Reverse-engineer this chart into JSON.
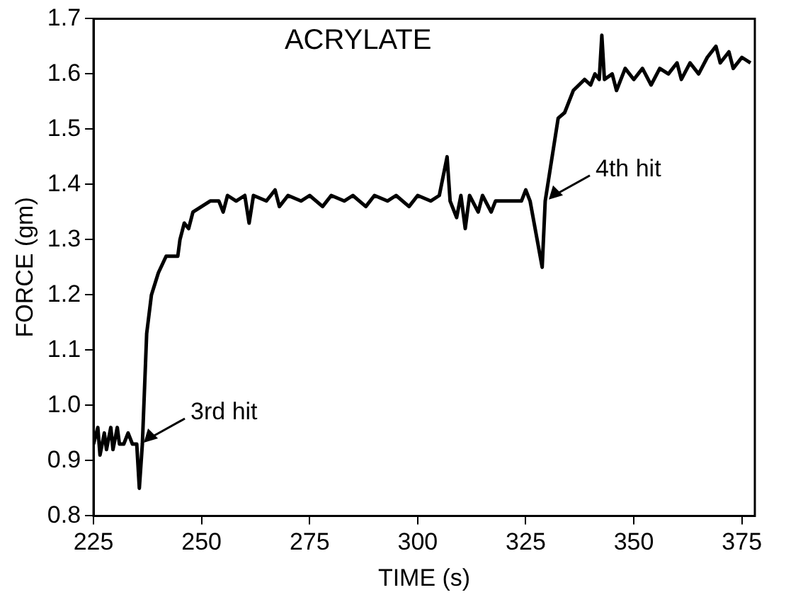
{
  "chart_data": {
    "type": "line",
    "title": "ACRYLATE",
    "xlabel": "TIME (s)",
    "ylabel": "FORCE (gm)",
    "x": [
      225,
      226,
      226.5,
      227.5,
      228,
      229,
      229.5,
      230.5,
      231,
      232,
      233,
      234,
      235,
      235.6,
      236.3,
      237.3,
      238.4,
      240,
      241.8,
      244.5,
      245,
      246,
      247,
      248,
      250,
      252,
      254,
      255,
      256,
      258,
      260,
      261,
      262,
      265,
      267,
      268,
      270,
      273,
      275,
      278,
      280,
      283,
      285,
      288,
      290,
      293,
      295,
      298,
      300,
      303,
      305,
      306.8,
      307.5,
      309,
      310,
      311,
      312,
      314,
      315,
      317,
      318,
      320,
      322,
      324,
      325,
      326,
      328.8,
      329.5,
      330.5,
      332.5,
      334,
      336,
      338.6,
      340,
      341,
      342,
      342.6,
      343.2,
      345,
      346,
      348,
      350,
      352,
      354,
      356,
      358,
      360,
      361,
      363,
      365,
      367,
      369,
      370,
      372,
      373,
      375,
      377
    ],
    "series": [
      {
        "color": "#000000",
        "values": [
          0.93,
          0.96,
          0.91,
          0.95,
          0.92,
          0.96,
          0.92,
          0.96,
          0.93,
          0.93,
          0.95,
          0.93,
          0.93,
          0.85,
          0.93,
          1.13,
          1.2,
          1.24,
          1.27,
          1.27,
          1.3,
          1.33,
          1.32,
          1.35,
          1.36,
          1.37,
          1.37,
          1.35,
          1.38,
          1.37,
          1.38,
          1.33,
          1.38,
          1.37,
          1.39,
          1.36,
          1.38,
          1.37,
          1.38,
          1.36,
          1.38,
          1.37,
          1.38,
          1.36,
          1.38,
          1.37,
          1.38,
          1.36,
          1.38,
          1.37,
          1.38,
          1.45,
          1.37,
          1.34,
          1.38,
          1.32,
          1.38,
          1.35,
          1.38,
          1.35,
          1.37,
          1.37,
          1.37,
          1.37,
          1.39,
          1.37,
          1.25,
          1.37,
          1.42,
          1.52,
          1.53,
          1.57,
          1.59,
          1.58,
          1.6,
          1.59,
          1.67,
          1.59,
          1.6,
          1.57,
          1.61,
          1.59,
          1.61,
          1.58,
          1.61,
          1.6,
          1.62,
          1.59,
          1.62,
          1.6,
          1.63,
          1.65,
          1.62,
          1.64,
          1.61,
          1.63,
          1.62
        ]
      }
    ],
    "xlim": [
      225,
      378
    ],
    "xticks": [
      225,
      250,
      275,
      300,
      325,
      350,
      375
    ],
    "ylim": [
      0.8,
      1.7
    ],
    "yticks": [
      0.8,
      0.9,
      {
        "value": 1,
        "label": "1.0"
      },
      1.1,
      1.2,
      1.3,
      1.4,
      1.5,
      1.6,
      1.7
    ],
    "annotations": [
      {
        "text": "3rd hit",
        "x": 236.3,
        "y": 0.93
      },
      {
        "text": "4th hit",
        "x": 330,
        "y": 1.37
      }
    ],
    "grid": false,
    "legend": false,
    "marker": "none",
    "line_style": "solid"
  }
}
